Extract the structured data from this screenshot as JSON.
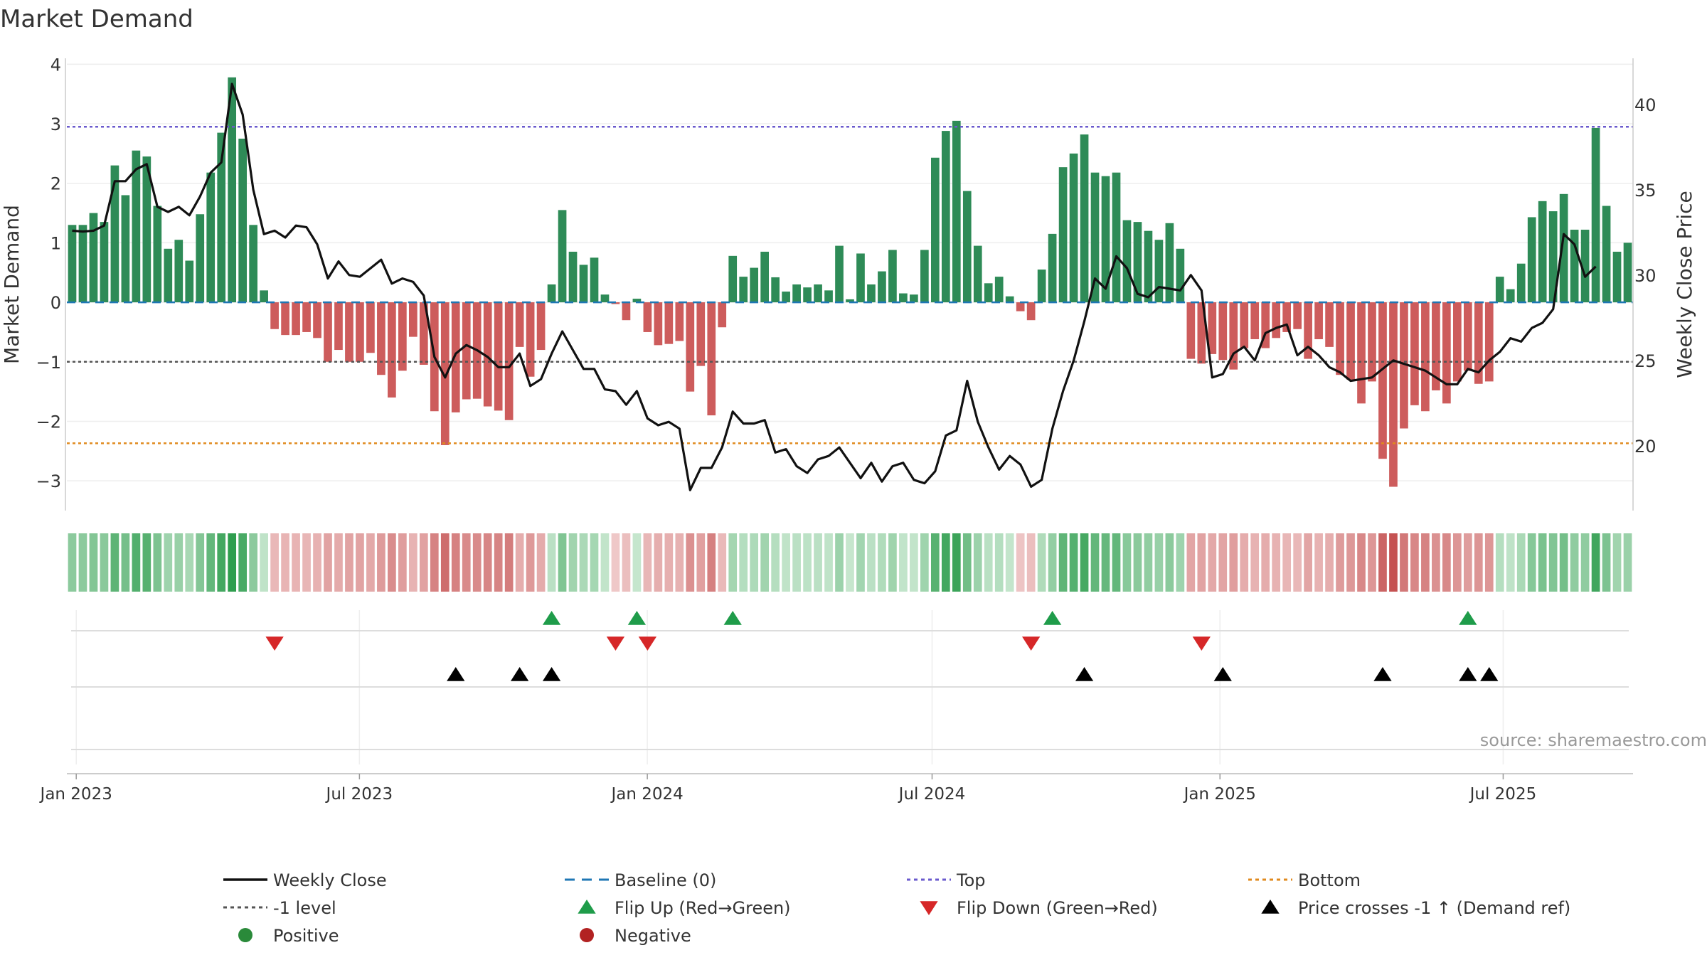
{
  "chart_data": {
    "type": "bar",
    "title": "Market Demand",
    "ylabel": "Market Demand",
    "y2label": "Weekly Close Price",
    "ylim": [
      -3.5,
      4.1
    ],
    "y2lim": [
      16.2,
      42.7
    ],
    "yticks": [
      4,
      3,
      2,
      1,
      0,
      -1,
      -2,
      -3
    ],
    "ytick_labels": [
      "4",
      "3",
      "2",
      "1",
      "0",
      "−1",
      "−2",
      "−3"
    ],
    "y2ticks": [
      40,
      35,
      30,
      25,
      20
    ],
    "y2tick_labels": [
      "40",
      "35",
      "30",
      "25",
      "20"
    ],
    "x_start": "2022-12-26",
    "x_end": "2025-09-22",
    "x_step_days": 7,
    "xticks": [
      {
        "date": "2023-01-01",
        "label": "Jan 2023"
      },
      {
        "date": "2023-07-01",
        "label": "Jul 2023"
      },
      {
        "date": "2024-01-01",
        "label": "Jan 2024"
      },
      {
        "date": "2024-07-01",
        "label": "Jul 2024"
      },
      {
        "date": "2025-01-01",
        "label": "Jan 2025"
      },
      {
        "date": "2025-07-01",
        "label": "Jul 2025"
      }
    ],
    "reference_lines": {
      "top": 2.95,
      "minus_one": -1,
      "bottom": -2.37,
      "baseline": 0
    },
    "demand": [
      1.3,
      1.3,
      1.5,
      1.35,
      2.3,
      1.8,
      2.55,
      2.45,
      1.62,
      0.9,
      1.05,
      0.7,
      1.48,
      2.18,
      2.85,
      3.78,
      2.75,
      1.3,
      0.2,
      -0.45,
      -0.55,
      -0.55,
      -0.5,
      -0.6,
      -1.0,
      -0.8,
      -1.0,
      -1.0,
      -0.85,
      -1.22,
      -1.6,
      -1.15,
      -0.58,
      -1.05,
      -1.83,
      -2.4,
      -1.85,
      -1.63,
      -1.62,
      -1.75,
      -1.82,
      -1.98,
      -0.75,
      -1.25,
      -0.8,
      0.3,
      1.55,
      0.85,
      0.63,
      0.75,
      0.13,
      -0.03,
      -0.3,
      0.06,
      -0.5,
      -0.72,
      -0.7,
      -0.65,
      -1.5,
      -1.07,
      -1.9,
      -0.42,
      0.78,
      0.43,
      0.58,
      0.85,
      0.42,
      0.18,
      0.3,
      0.25,
      0.3,
      0.2,
      0.95,
      0.05,
      0.82,
      0.3,
      0.52,
      0.88,
      0.15,
      0.13,
      0.88,
      2.43,
      2.88,
      3.05,
      1.87,
      0.95,
      0.32,
      0.43,
      0.1,
      -0.15,
      -0.3,
      0.55,
      1.15,
      2.27,
      2.5,
      2.82,
      2.18,
      2.12,
      2.18,
      1.38,
      1.35,
      1.2,
      1.05,
      1.33,
      0.9,
      -0.95,
      -1.03,
      -0.87,
      -0.97,
      -1.13,
      -0.77,
      -0.62,
      -0.77,
      -0.6,
      -0.5,
      -0.45,
      -0.95,
      -0.62,
      -0.75,
      -1.22,
      -1.3,
      -1.7,
      -1.33,
      -2.63,
      -3.1,
      -2.12,
      -1.73,
      -1.83,
      -1.48,
      -1.7,
      -1.33,
      -1.15,
      -1.37,
      -1.33,
      0.43,
      0.22,
      0.65,
      1.43,
      1.7,
      1.53,
      1.82,
      1.22,
      1.22,
      2.93,
      1.62,
      0.85,
      1.0
    ],
    "price": [
      32.6,
      32.55,
      32.6,
      32.9,
      35.5,
      35.5,
      36.2,
      36.5,
      34.0,
      33.7,
      34.0,
      33.5,
      34.6,
      36.0,
      36.6,
      41.2,
      39.4,
      35.0,
      32.4,
      32.6,
      32.2,
      32.9,
      32.8,
      31.8,
      29.8,
      30.8,
      30.0,
      29.9,
      30.4,
      30.9,
      29.5,
      29.8,
      29.6,
      28.8,
      25.2,
      24.0,
      25.4,
      25.9,
      25.6,
      25.2,
      24.6,
      24.6,
      25.4,
      23.5,
      23.9,
      25.4,
      26.7,
      25.6,
      24.5,
      24.5,
      23.3,
      23.2,
      22.4,
      23.2,
      21.6,
      21.2,
      21.4,
      21.0,
      17.4,
      18.7,
      18.7,
      19.9,
      22.0,
      21.3,
      21.3,
      21.5,
      19.6,
      19.8,
      18.8,
      18.4,
      19.2,
      19.4,
      19.9,
      19.0,
      18.1,
      19.0,
      17.9,
      18.8,
      19.0,
      18.0,
      17.8,
      18.5,
      20.6,
      20.9,
      23.8,
      21.4,
      19.9,
      18.6,
      19.4,
      18.9,
      17.6,
      18.0,
      21.0,
      23.2,
      25.0,
      27.3,
      29.8,
      29.2,
      31.1,
      30.4,
      28.9,
      28.7,
      29.3,
      29.2,
      29.1,
      30.0,
      29.1,
      24.0,
      24.2,
      25.4,
      25.8,
      25.0,
      26.6,
      26.9,
      27.1,
      25.3,
      25.8,
      25.3,
      24.6,
      24.3,
      23.8,
      23.9,
      24.0,
      24.5,
      25.0,
      24.8,
      24.6,
      24.4,
      24.0,
      23.6,
      23.6,
      24.5,
      24.3,
      25.0,
      25.5,
      26.3,
      26.1,
      26.9,
      27.2,
      28.0,
      32.4,
      31.8,
      29.9,
      30.5
    ],
    "flip_up_index": [
      45,
      53,
      62,
      92,
      131
    ],
    "flip_down_index": [
      19,
      51,
      54,
      90,
      106
    ],
    "price_cross_index": [
      36,
      42,
      45,
      95,
      108,
      123,
      131,
      133
    ],
    "source_text": "source: sharemaestro.com",
    "legend": [
      {
        "key": "weekly_close",
        "label": "Weekly Close",
        "style": "line",
        "color": "#111111"
      },
      {
        "key": "baseline",
        "label": "Baseline (0)",
        "style": "dash",
        "color": "#1f77b4"
      },
      {
        "key": "top",
        "label": "Top",
        "style": "dot",
        "color": "#6a5acd"
      },
      {
        "key": "bottom",
        "label": "Bottom",
        "style": "dot",
        "color": "#e08a1e"
      },
      {
        "key": "minus_one",
        "label": "-1 level",
        "style": "dot",
        "color": "#555555"
      },
      {
        "key": "flip_up",
        "label": "Flip Up (Red→Green)",
        "style": "tri-up",
        "color": "#1f9c4a"
      },
      {
        "key": "flip_down",
        "label": "Flip Down (Green→Red)",
        "style": "tri-down",
        "color": "#d62728"
      },
      {
        "key": "price_cross",
        "label": "Price crosses -1 ↑ (Demand ref)",
        "style": "tri-up",
        "color": "#000000"
      },
      {
        "key": "positive",
        "label": "Positive",
        "style": "circle",
        "color": "#2a8a3a"
      },
      {
        "key": "negative",
        "label": "Negative",
        "style": "circle",
        "color": "#b22222"
      }
    ]
  },
  "colors": {
    "positive_bar": "#2e8b57",
    "negative_bar": "#cd5c5c",
    "price_line": "#111111",
    "grid": "#eeeeee"
  }
}
